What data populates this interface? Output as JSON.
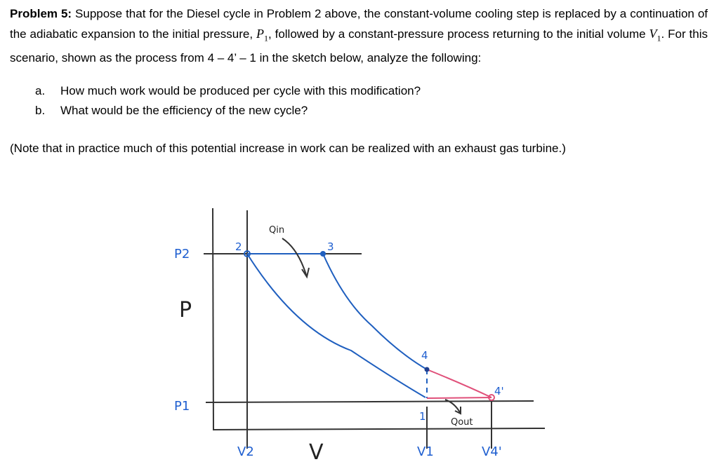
{
  "problem": {
    "label": "Problem 5:",
    "text_a": " Suppose that for the Diesel cycle in Problem 2 above, the constant-volume cooling step is replaced by a continuation of the adiabatic expansion to the initial pressure, ",
    "p1": "P",
    "p1_sub": "1",
    "text_b": ", followed by a constant-pressure process returning to the initial volume ",
    "v1": "V",
    "v1_sub": "1",
    "text_c": ".  For this scenario, shown as the process from 4 – 4’ – 1 in the sketch below, analyze the following:"
  },
  "questions": [
    {
      "letter": "a.",
      "text": "How much work would be produced per cycle with this modification?"
    },
    {
      "letter": "b.",
      "text": "What would be the efficiency of the new cycle?"
    }
  ],
  "note": "(Note that in practice much of this potential increase in work can be realized with an exhaust gas turbine.)",
  "sketch": {
    "y_axis_label": "P",
    "x_axis_label": "V",
    "p2_label": "P2",
    "p1_label": "P1",
    "v2_label": "V2",
    "v1_label": "V1",
    "v4p_label": "V4'",
    "points": {
      "p2": "2",
      "p3": "3",
      "p4": "4",
      "p1": "1",
      "p4p": "4'"
    },
    "q_in": "Qin",
    "q_out": "Qout",
    "colors": {
      "cycle": "#1f5fbf",
      "modified": "#e0507a",
      "axes": "#333333",
      "labels": "#1f5fd0"
    }
  }
}
